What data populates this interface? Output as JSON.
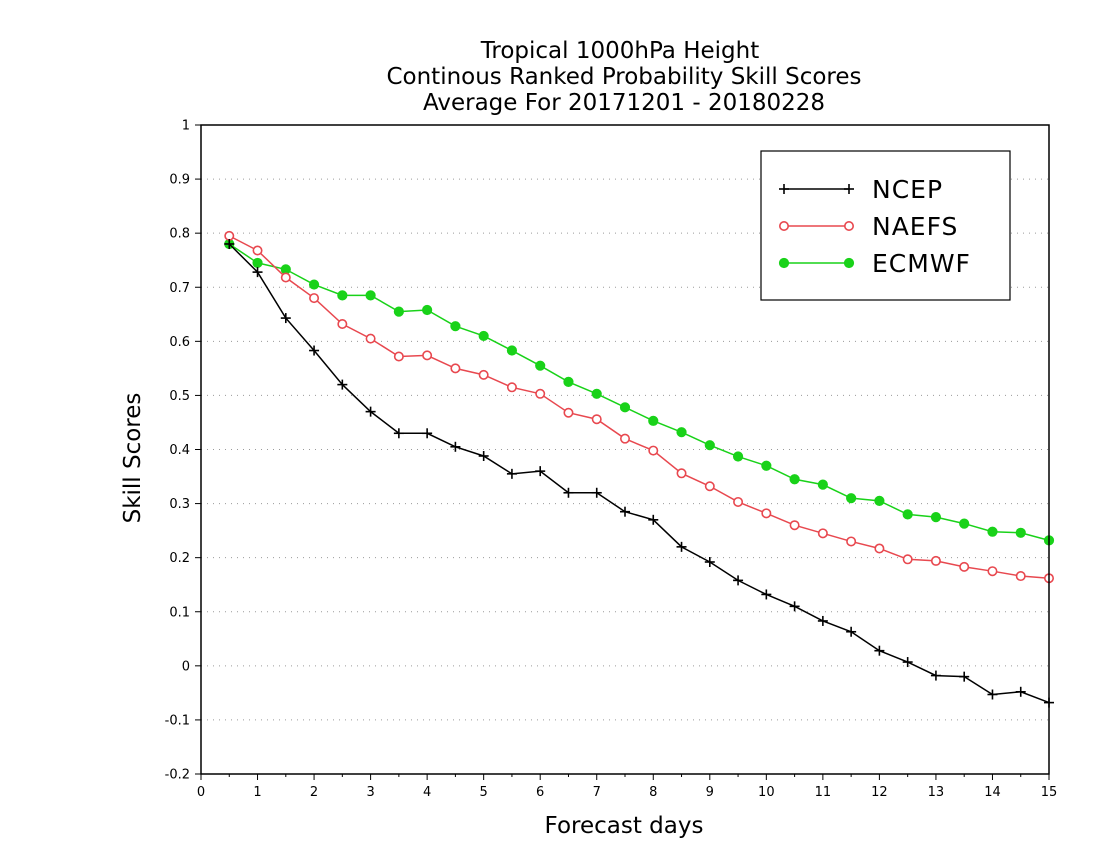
{
  "chart_data": {
    "type": "line",
    "title_lines": [
      "Tropical 1000hPa Height",
      "Continous Ranked Probability Skill Scores",
      "Average For 20171201 - 20180228"
    ],
    "xlabel": "Forecast days",
    "ylabel": "Skill Scores",
    "xlim": [
      0,
      15
    ],
    "ylim": [
      -0.2,
      1
    ],
    "x_ticks": [
      "0",
      "1",
      "2",
      "3",
      "4",
      "5",
      "6",
      "7",
      "8",
      "9",
      "10",
      "11",
      "12",
      "13",
      "14",
      "15"
    ],
    "y_ticks": [
      "-0.2",
      "-0.1",
      "0",
      "0.1",
      "0.2",
      "0.3",
      "0.4",
      "0.5",
      "0.6",
      "0.7",
      "0.8",
      "0.9",
      "1"
    ],
    "grid": "horizontal dotted",
    "legend_position": "top-right",
    "x": [
      0.5,
      1,
      1.5,
      2,
      2.5,
      3,
      3.5,
      4,
      4.5,
      5,
      5.5,
      6,
      6.5,
      7,
      7.5,
      8,
      8.5,
      9,
      9.5,
      10,
      10.5,
      11,
      11.5,
      12,
      12.5,
      13,
      13.5,
      14,
      14.5,
      15
    ],
    "series": [
      {
        "name": "NCEP",
        "color": "#000000",
        "marker": "plus",
        "values": [
          0.78,
          0.728,
          0.643,
          0.583,
          0.52,
          0.47,
          0.43,
          0.43,
          0.405,
          0.388,
          0.355,
          0.36,
          0.32,
          0.32,
          0.285,
          0.27,
          0.22,
          0.192,
          0.158,
          0.132,
          0.11,
          0.083,
          0.063,
          0.028,
          0.007,
          -0.018,
          -0.02,
          -0.053,
          -0.048,
          -0.068
        ]
      },
      {
        "name": "NAEFS",
        "color": "#e8484f",
        "marker": "open-circle",
        "values": [
          0.795,
          0.768,
          0.718,
          0.68,
          0.632,
          0.605,
          0.572,
          0.574,
          0.55,
          0.538,
          0.515,
          0.503,
          0.468,
          0.456,
          0.42,
          0.398,
          0.356,
          0.332,
          0.303,
          0.282,
          0.26,
          0.245,
          0.23,
          0.217,
          0.197,
          0.194,
          0.183,
          0.175,
          0.166,
          0.162
        ]
      },
      {
        "name": "ECMWF",
        "color": "#19d219",
        "marker": "filled-circle",
        "values": [
          0.78,
          0.745,
          0.733,
          0.705,
          0.685,
          0.685,
          0.655,
          0.658,
          0.628,
          0.61,
          0.583,
          0.555,
          0.525,
          0.503,
          0.478,
          0.453,
          0.432,
          0.408,
          0.387,
          0.37,
          0.345,
          0.335,
          0.31,
          0.305,
          0.28,
          0.275,
          0.263,
          0.248,
          0.246,
          0.232
        ]
      }
    ]
  }
}
